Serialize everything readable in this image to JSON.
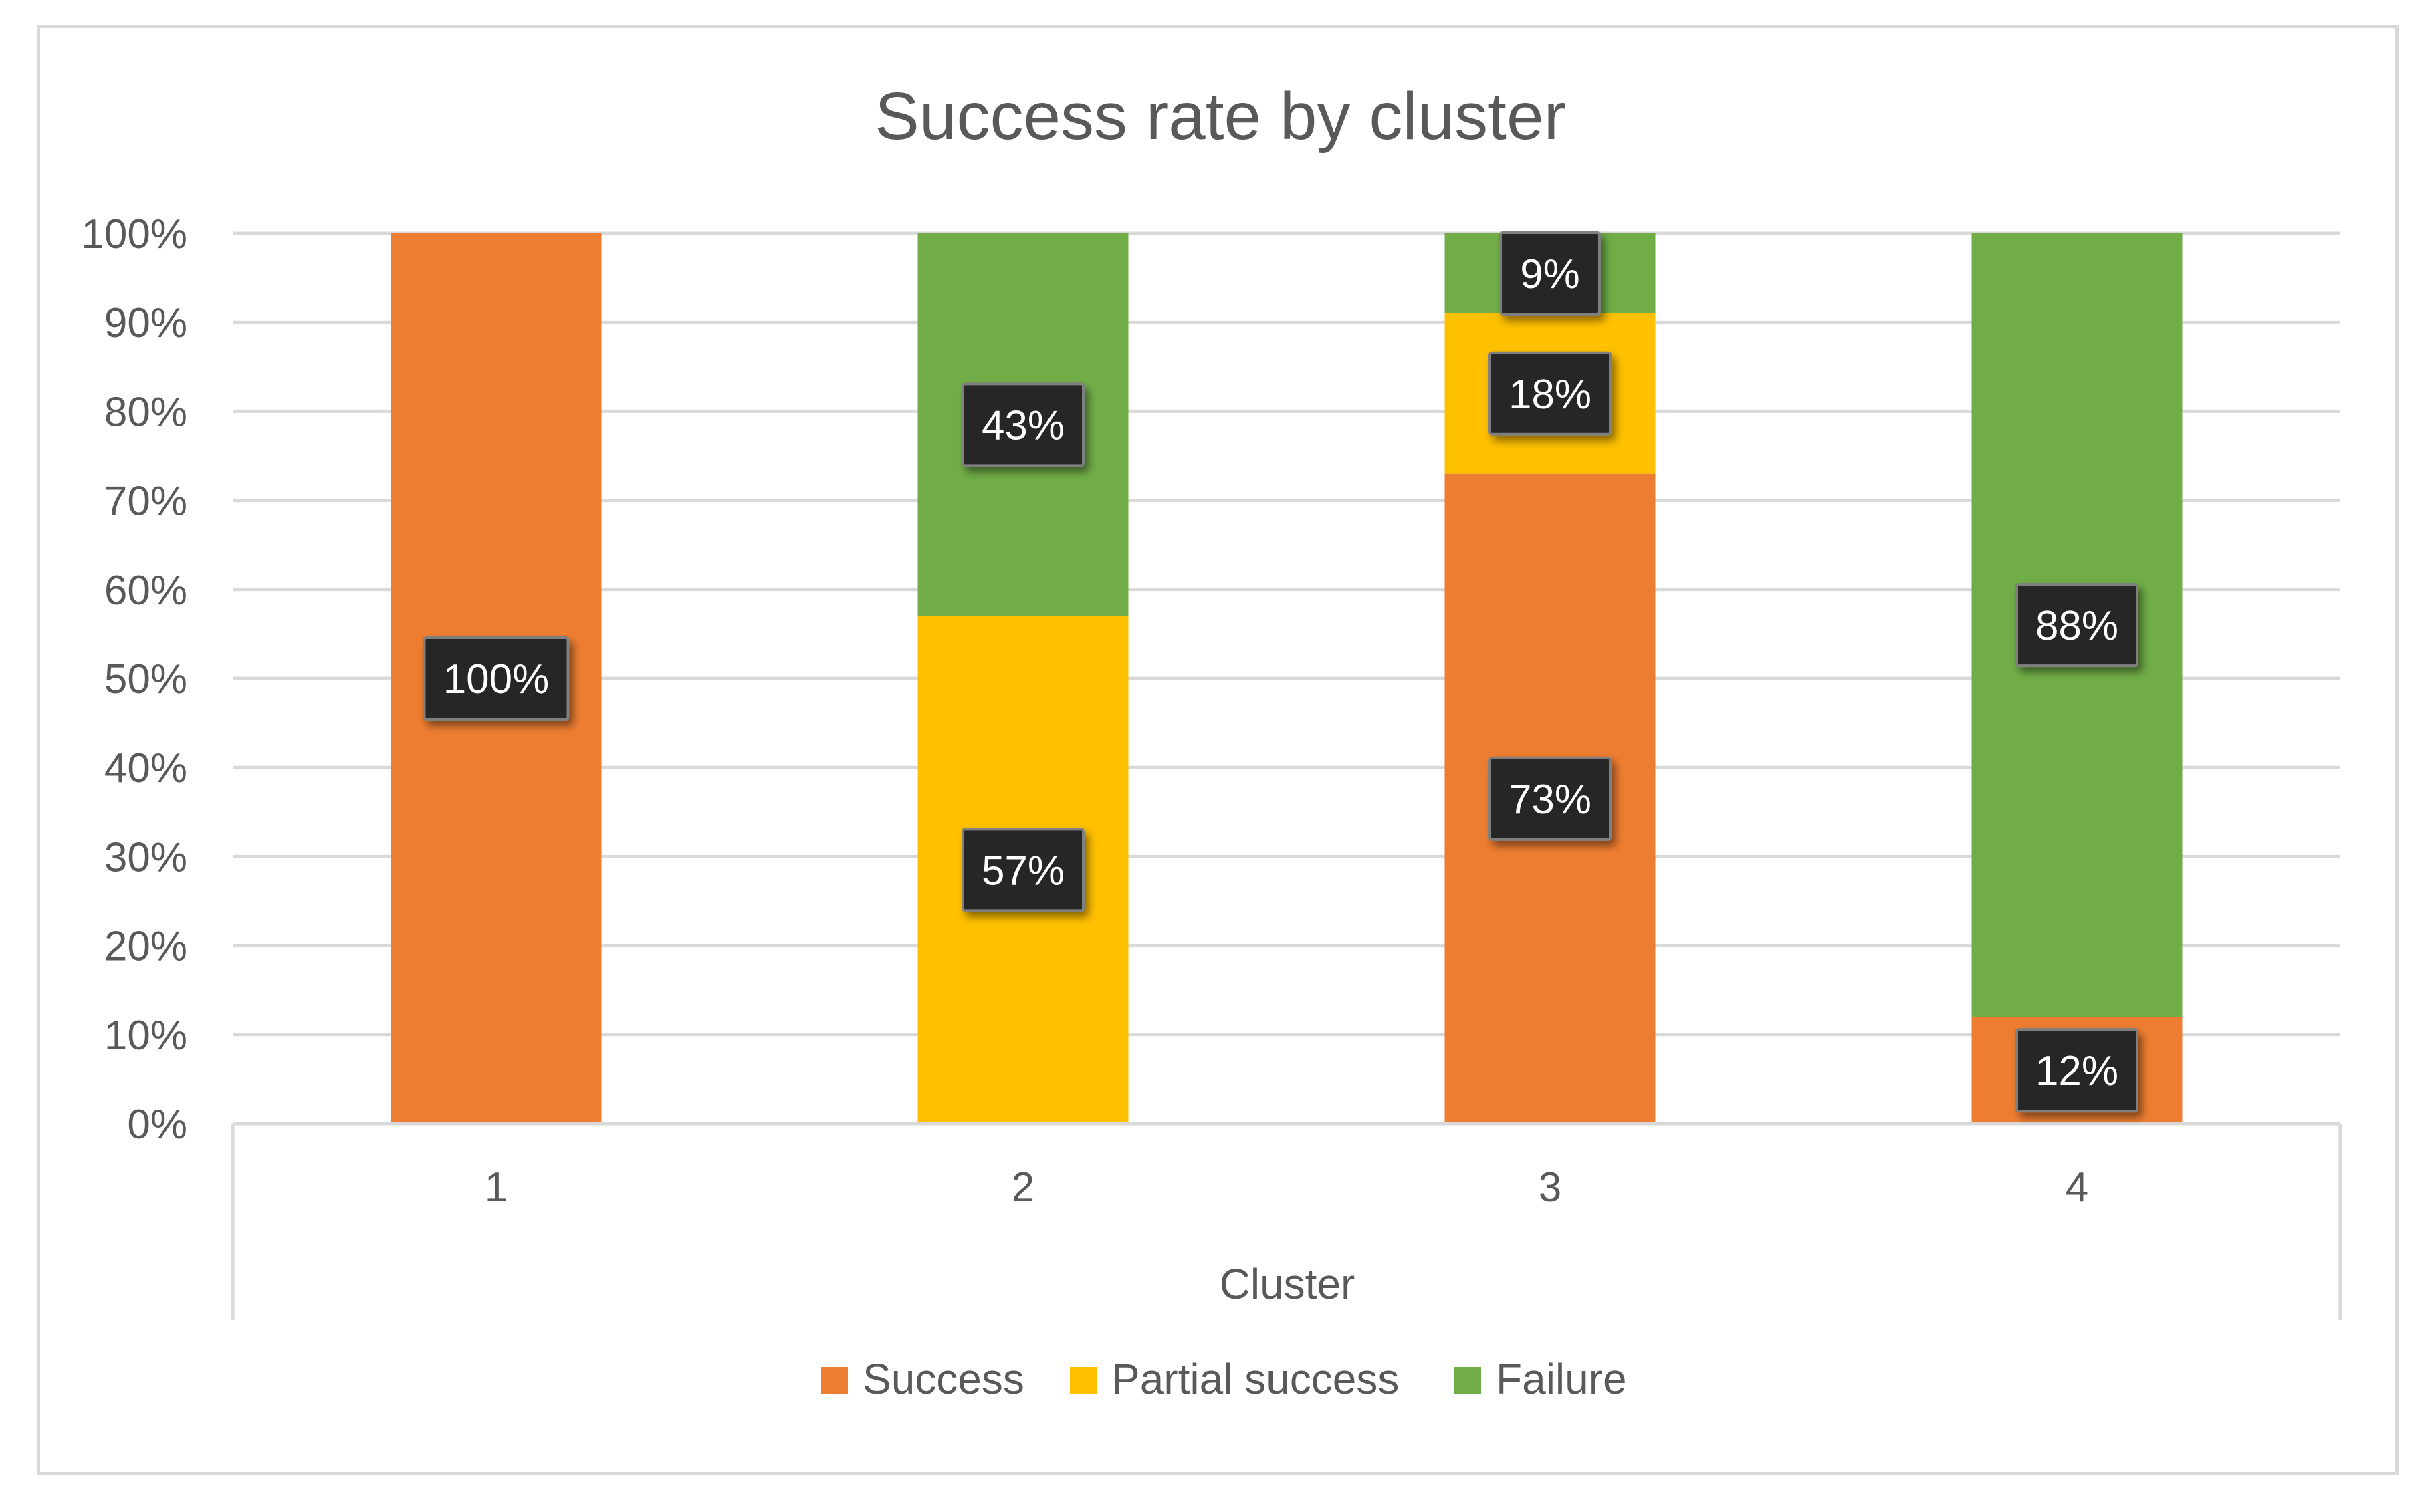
{
  "chart_data": {
    "type": "bar",
    "stacked": true,
    "title": "Success rate by cluster",
    "xlabel": "Cluster",
    "ylabel": "",
    "categories": [
      "1",
      "2",
      "3",
      "4"
    ],
    "ylim": [
      0,
      100
    ],
    "y_ticks": [
      "0%",
      "10%",
      "20%",
      "30%",
      "40%",
      "50%",
      "60%",
      "70%",
      "80%",
      "90%",
      "100%"
    ],
    "series": [
      {
        "name": "Success",
        "color": "#ED7D31",
        "values": [
          100,
          0,
          73,
          12
        ],
        "labels": [
          "100%",
          "",
          "73%",
          "12%"
        ]
      },
      {
        "name": "Partial success",
        "color": "#FFC000",
        "values": [
          0,
          57,
          18,
          0
        ],
        "labels": [
          "",
          "57%",
          "18%",
          ""
        ]
      },
      {
        "name": "Failure",
        "color": "#70AD47",
        "values": [
          0,
          43,
          9,
          88
        ],
        "labels": [
          "",
          "43%",
          "9%",
          "88%"
        ]
      }
    ],
    "gridlines": true,
    "legend_position": "bottom"
  }
}
